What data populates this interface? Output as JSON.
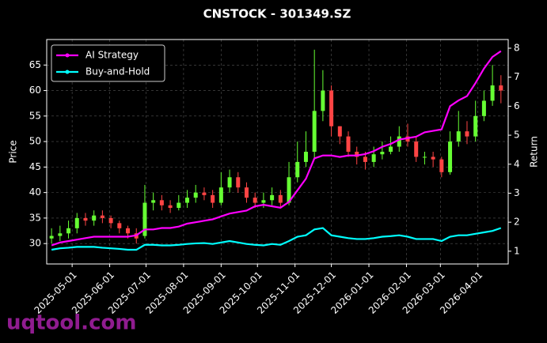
{
  "chart_data": {
    "type": "candlestick",
    "title": "CNSTOCK - 301349.SZ",
    "ylabel": "Price",
    "y2label": "Return",
    "watermark": "uqtool.com",
    "x": [
      "2025-04-14",
      "2025-04-21",
      "2025-04-28",
      "2025-05-05",
      "2025-05-12",
      "2025-05-19",
      "2025-05-26",
      "2025-06-02",
      "2025-06-09",
      "2025-06-16",
      "2025-06-23",
      "2025-06-30",
      "2025-07-07",
      "2025-07-14",
      "2025-07-21",
      "2025-07-28",
      "2025-08-04",
      "2025-08-11",
      "2025-08-18",
      "2025-08-25",
      "2025-09-01",
      "2025-09-08",
      "2025-09-15",
      "2025-09-22",
      "2025-09-29",
      "2025-10-06",
      "2025-10-13",
      "2025-10-20",
      "2025-10-27",
      "2025-11-03",
      "2025-11-10",
      "2025-11-17",
      "2025-11-24",
      "2025-12-01",
      "2025-12-08",
      "2025-12-15",
      "2025-12-22",
      "2025-12-29",
      "2026-01-05",
      "2026-01-12",
      "2026-01-19",
      "2026-01-26",
      "2026-02-02",
      "2026-02-09",
      "2026-02-16",
      "2026-02-23",
      "2026-03-02",
      "2026-03-09",
      "2026-03-16",
      "2026-03-23",
      "2026-03-30",
      "2026-04-06",
      "2026-04-13",
      "2026-04-20"
    ],
    "open": [
      31,
      31.5,
      32,
      33,
      35,
      34.5,
      35.5,
      35,
      34,
      33,
      32,
      31.5,
      38,
      38.5,
      37.5,
      37,
      38,
      39,
      40,
      39.5,
      38,
      41,
      43,
      41,
      39,
      38,
      38.5,
      39.5,
      38,
      43,
      46,
      48,
      56,
      60,
      53,
      51,
      48,
      47,
      46,
      47.5,
      48,
      49,
      51,
      50,
      47,
      47,
      46.5,
      44,
      50,
      52,
      51,
      55,
      58,
      61
    ],
    "high": [
      33,
      33.5,
      34.5,
      36,
      36,
      36.5,
      36.5,
      35.5,
      34.5,
      33.5,
      33,
      41.5,
      40,
      39.5,
      38.5,
      39.5,
      40.5,
      41.5,
      41,
      40.5,
      44,
      44.5,
      44,
      42,
      40,
      40,
      41,
      40.5,
      46,
      50,
      52,
      68,
      64,
      61,
      53,
      52,
      49,
      48,
      49,
      50,
      51,
      53,
      53.5,
      51,
      48,
      48,
      47,
      52,
      56,
      54,
      58,
      60,
      65,
      63
    ],
    "low": [
      30,
      30.5,
      31,
      32,
      33.5,
      33.5,
      34,
      33,
      32,
      31,
      30,
      31,
      36.5,
      36.5,
      36,
      36.5,
      37,
      38,
      38.5,
      37,
      37.5,
      40,
      40,
      38,
      37,
      37,
      37.5,
      37,
      37.5,
      42,
      45,
      46.5,
      54,
      51,
      49.5,
      47,
      45.5,
      44.5,
      45,
      46.5,
      47.5,
      48,
      49,
      46,
      45.5,
      45,
      43,
      43.5,
      49,
      49.5,
      50,
      54,
      57,
      57.5
    ],
    "close": [
      31.5,
      32,
      33,
      35,
      34.5,
      35.5,
      35,
      34,
      33,
      32,
      31,
      38,
      38.5,
      37.5,
      37,
      38,
      39,
      40,
      39.5,
      38,
      41,
      43,
      41,
      39,
      38,
      38.5,
      39.5,
      38,
      43,
      46,
      48,
      56,
      60,
      53,
      51,
      48,
      47,
      46,
      47.5,
      48,
      49,
      51,
      50,
      47,
      47,
      46.5,
      44,
      50,
      52,
      51,
      55,
      58,
      61,
      60
    ],
    "up_color": "#66ff33",
    "down_color": "#ff4444",
    "series": [
      {
        "name": "AI Strategy",
        "color": "#ff00ff",
        "axis": "y2",
        "values": [
          1.2,
          1.3,
          1.35,
          1.4,
          1.45,
          1.5,
          1.5,
          1.5,
          1.5,
          1.5,
          1.55,
          1.75,
          1.75,
          1.8,
          1.8,
          1.85,
          1.95,
          2.0,
          2.05,
          2.1,
          2.2,
          2.3,
          2.35,
          2.4,
          2.55,
          2.6,
          2.55,
          2.5,
          2.7,
          3.1,
          3.5,
          4.2,
          4.3,
          4.3,
          4.25,
          4.3,
          4.3,
          4.35,
          4.45,
          4.6,
          4.7,
          4.85,
          4.9,
          4.95,
          5.1,
          5.15,
          5.2,
          6.0,
          6.2,
          6.35,
          6.8,
          7.3,
          7.7,
          7.9
        ]
      },
      {
        "name": "Buy-and-Hold",
        "color": "#00ffff",
        "axis": "y2",
        "values": [
          1.05,
          1.1,
          1.12,
          1.15,
          1.15,
          1.15,
          1.12,
          1.1,
          1.08,
          1.05,
          1.05,
          1.22,
          1.22,
          1.2,
          1.2,
          1.22,
          1.25,
          1.27,
          1.28,
          1.25,
          1.3,
          1.35,
          1.3,
          1.25,
          1.22,
          1.2,
          1.25,
          1.22,
          1.35,
          1.5,
          1.55,
          1.75,
          1.8,
          1.55,
          1.5,
          1.45,
          1.42,
          1.42,
          1.45,
          1.5,
          1.52,
          1.55,
          1.5,
          1.42,
          1.42,
          1.42,
          1.35,
          1.5,
          1.55,
          1.55,
          1.6,
          1.65,
          1.7,
          1.8
        ]
      }
    ],
    "xlim": [
      "2025-04-10",
      "2026-04-26"
    ],
    "xticks": [
      "2025-05-01",
      "2025-06-01",
      "2025-07-01",
      "2025-08-01",
      "2025-09-01",
      "2025-10-01",
      "2025-11-01",
      "2025-12-01",
      "2026-01-01",
      "2026-02-01",
      "2026-03-01",
      "2026-04-01"
    ],
    "ylim": [
      26,
      70
    ],
    "yticks": [
      30,
      35,
      40,
      45,
      50,
      55,
      60,
      65
    ],
    "y2lim": [
      0.56,
      8.3
    ],
    "y2ticks": [
      1,
      2,
      3,
      4,
      5,
      6,
      7,
      8
    ],
    "grid": true,
    "legend": "upper left"
  }
}
